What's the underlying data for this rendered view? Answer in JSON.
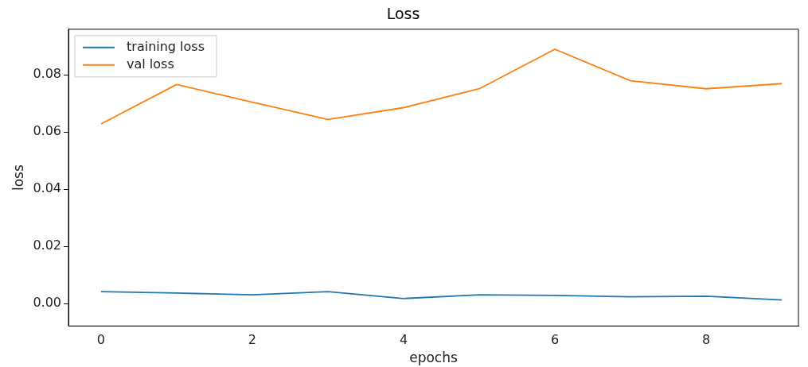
{
  "chart_data": {
    "type": "line",
    "title": "Loss",
    "xlabel": "epochs",
    "ylabel": "loss",
    "x": [
      0,
      1,
      2,
      3,
      4,
      5,
      6,
      7,
      8,
      9
    ],
    "series": [
      {
        "name": "training loss",
        "color": "#1f77b4",
        "values": [
          0.0042,
          0.0037,
          0.0031,
          0.0042,
          0.0018,
          0.0031,
          0.0029,
          0.0024,
          0.0026,
          0.0013
        ]
      },
      {
        "name": "val loss",
        "color": "#ff7f0e",
        "values": [
          0.0628,
          0.0766,
          0.0704,
          0.0644,
          0.0685,
          0.0751,
          0.0889,
          0.0779,
          0.0751,
          0.0769
        ]
      }
    ],
    "xlim": [
      -0.43,
      9.22
    ],
    "xticks": [
      0,
      2,
      4,
      6,
      8
    ],
    "ylim": [
      -0.0078,
      0.0959
    ],
    "yticks": [
      {
        "value": 0,
        "label": "0.00"
      },
      {
        "value": 0.02,
        "label": "0.02"
      },
      {
        "value": 0.04,
        "label": "0.04"
      },
      {
        "value": 0.06,
        "label": "0.06"
      },
      {
        "value": 0.08,
        "label": "0.08"
      }
    ],
    "legend": "top left",
    "grid": false,
    "marker": "none",
    "line_style": "solid"
  }
}
